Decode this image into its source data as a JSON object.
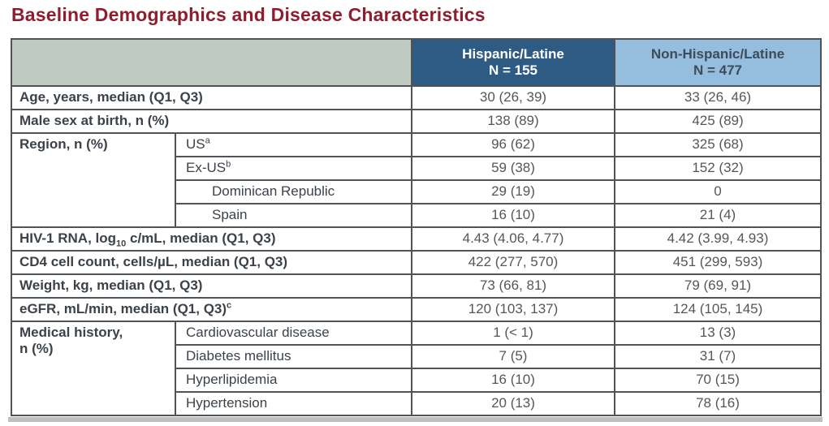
{
  "page_title": "Baseline Demographics and Disease Characteristics",
  "table": {
    "header": {
      "corner": "",
      "columns": [
        {
          "line1": "Hispanic/Latine",
          "line2": "N = 155"
        },
        {
          "line1": "Non-Hispanic/Latine",
          "line2": "N = 477"
        }
      ]
    },
    "rows": [
      {
        "kind": "simple",
        "label": [
          {
            "t": "Age, years, median (Q1, Q3)"
          }
        ],
        "values": [
          "30 (26, 39)",
          "33 (26, 46)"
        ]
      },
      {
        "kind": "simple",
        "label": [
          {
            "t": "Male sex at birth, n (%)"
          }
        ],
        "values": [
          "138 (89)",
          "425 (89)"
        ]
      },
      {
        "kind": "group",
        "span": 4,
        "group_label": [
          {
            "t": "Region, n (%)"
          }
        ],
        "label": [
          {
            "t": "US"
          },
          {
            "t": "a",
            "v": "sup"
          }
        ],
        "values": [
          "96 (62)",
          "325 (68)"
        ]
      },
      {
        "kind": "sub",
        "label": [
          {
            "t": "Ex-US"
          },
          {
            "t": "b",
            "v": "sup"
          }
        ],
        "values": [
          "59 (38)",
          "152 (32)"
        ]
      },
      {
        "kind": "sub",
        "indent": true,
        "label": [
          {
            "t": "Dominican Republic"
          }
        ],
        "values": [
          "29 (19)",
          "0"
        ]
      },
      {
        "kind": "sub",
        "indent": true,
        "label": [
          {
            "t": "Spain"
          }
        ],
        "values": [
          "16 (10)",
          "21 (4)"
        ]
      },
      {
        "kind": "simple",
        "label": [
          {
            "t": "HIV-1 RNA, log"
          },
          {
            "t": "10",
            "v": "sub"
          },
          {
            "t": " c/mL, median (Q1, Q3)"
          }
        ],
        "values": [
          "4.43 (4.06, 4.77)",
          "4.42 (3.99, 4.93)"
        ]
      },
      {
        "kind": "simple",
        "label": [
          {
            "t": "CD4 cell count, cells/µL, median (Q1, Q3)"
          }
        ],
        "values": [
          "422 (277, 570)",
          "451 (299, 593)"
        ]
      },
      {
        "kind": "simple",
        "label": [
          {
            "t": "Weight, kg, median (Q1, Q3)"
          }
        ],
        "values": [
          "73 (66, 81)",
          "79 (69, 91)"
        ]
      },
      {
        "kind": "simple",
        "label": [
          {
            "t": "eGFR, mL/min, median (Q1, Q3)"
          },
          {
            "t": "c",
            "v": "sup"
          }
        ],
        "values": [
          "120 (103, 137)",
          "124 (105, 145)"
        ]
      },
      {
        "kind": "group",
        "span": 4,
        "group_label": [
          {
            "t": "Medical history,\nn (%)"
          }
        ],
        "label": [
          {
            "t": "Cardiovascular disease"
          }
        ],
        "values": [
          "1 (< 1)",
          "13 (3)"
        ]
      },
      {
        "kind": "sub",
        "label": [
          {
            "t": "Diabetes mellitus"
          }
        ],
        "values": [
          "7 (5)",
          "31 (7)"
        ]
      },
      {
        "kind": "sub",
        "label": [
          {
            "t": "Hyperlipidemia"
          }
        ],
        "values": [
          "16 (10)",
          "70 (15)"
        ]
      },
      {
        "kind": "sub",
        "label": [
          {
            "t": "Hypertension"
          }
        ],
        "values": [
          "20 (13)",
          "78 (16)"
        ]
      }
    ]
  },
  "colors": {
    "title": "#8e1e2e",
    "header_corner_bg": "#bfcac3",
    "header_col1_bg": "#2e5b84",
    "header_col1_text": "#ffffff",
    "header_col2_bg": "#95bddd",
    "header_col2_text": "#3d4c5a",
    "border": "#4f5355",
    "label_text": "#3b424a",
    "value_text": "#53575b",
    "footer_bar": "#bfbfbf"
  }
}
